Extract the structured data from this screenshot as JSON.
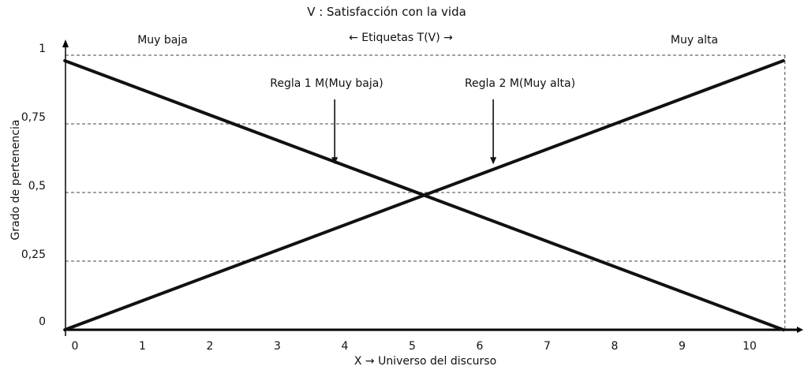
{
  "chart_data": {
    "type": "line",
    "title": "V : Satisfacción con la vida",
    "subtitle": "← Etiquetas T(V) →",
    "xlabel": "X → Universo del discurso",
    "ylabel": "Grado de pertenencia",
    "x_ticks": [
      "0",
      "1",
      "2",
      "3",
      "4",
      "5",
      "6",
      "7",
      "8",
      "9",
      "10"
    ],
    "y_ticks": [
      {
        "value": 0,
        "label": "0"
      },
      {
        "value": 0.25,
        "label": "0,25"
      },
      {
        "value": 0.5,
        "label": "0,5"
      },
      {
        "value": 0.75,
        "label": "0,75"
      },
      {
        "value": 1,
        "label": "1"
      }
    ],
    "xlim": [
      -0.15,
      10.9
    ],
    "ylim": [
      0,
      1
    ],
    "grid": "horizontal-dashed",
    "series": [
      {
        "name": "Muy baja",
        "x": [
          -0.15,
          10.5
        ],
        "y": [
          0.98,
          0.0
        ]
      },
      {
        "name": "Muy alta",
        "x": [
          -0.15,
          10.5
        ],
        "y": [
          0.0,
          0.98
        ]
      }
    ],
    "annotations": [
      {
        "text": "Regla 1 M(Muy baja)",
        "x": 3.85,
        "y": 0.6
      },
      {
        "text": "Regla 2 M(Muy alta)",
        "x": 6.2,
        "y": 0.6
      }
    ]
  }
}
